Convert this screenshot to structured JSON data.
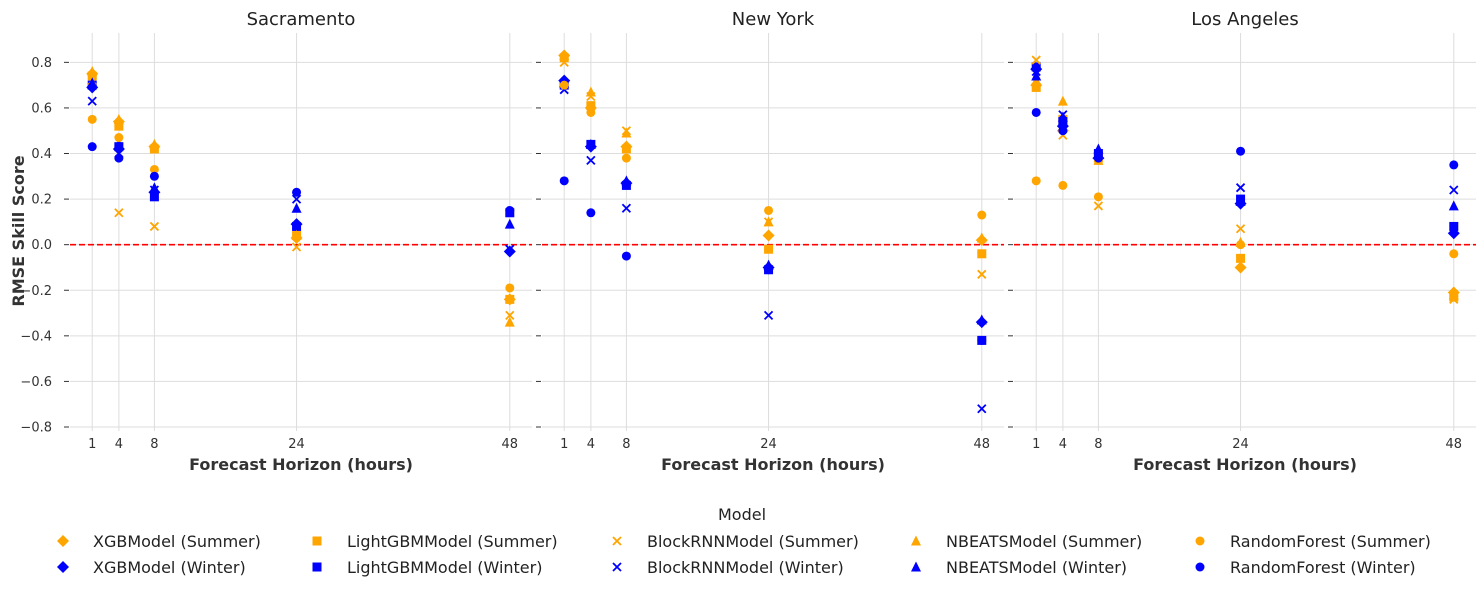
{
  "chart_data": {
    "type": "scatter",
    "ylabel": "RMSE Skill Score",
    "xlabel": "Forecast Horizon (hours)",
    "xticks": [
      1,
      4,
      8,
      24,
      48
    ],
    "xlim": [
      -1.5,
      50.5
    ],
    "ylim": [
      -0.8,
      0.92
    ],
    "yticks": [
      -0.8,
      -0.6,
      -0.4,
      -0.2,
      0.0,
      0.2,
      0.4,
      0.6,
      0.8
    ],
    "ytick_labels": [
      "−0.8",
      "−0.6",
      "−0.4",
      "−0.2",
      "0.0",
      "0.2",
      "0.4",
      "0.6",
      "0.8"
    ],
    "reference_line": {
      "y": 0,
      "color": "#ff0000",
      "style": "dashed"
    },
    "grid": true,
    "legend": {
      "title": "Model",
      "placement": "bottom-center",
      "entries": [
        {
          "label": "XGBModel (Summer)",
          "marker": "diamond",
          "color": "#ffa500"
        },
        {
          "label": "XGBModel (Winter)",
          "marker": "diamond",
          "color": "#0000ff"
        },
        {
          "label": "LightGBMModel (Summer)",
          "marker": "square",
          "color": "#ffa500"
        },
        {
          "label": "LightGBMModel (Winter)",
          "marker": "square",
          "color": "#0000ff"
        },
        {
          "label": "BlockRNNModel (Summer)",
          "marker": "x",
          "color": "#ffa500"
        },
        {
          "label": "BlockRNNModel (Winter)",
          "marker": "x",
          "color": "#0000ff"
        },
        {
          "label": "NBEATSModel (Summer)",
          "marker": "triangle",
          "color": "#ffa500"
        },
        {
          "label": "NBEATSModel (Winter)",
          "marker": "triangle",
          "color": "#0000ff"
        },
        {
          "label": "RandomForest (Summer)",
          "marker": "circle",
          "color": "#ffa500"
        },
        {
          "label": "RandomForest (Winter)",
          "marker": "circle",
          "color": "#0000ff"
        }
      ]
    },
    "panels": [
      {
        "title": "Sacramento",
        "series": [
          {
            "name": "XGBModel (Summer)",
            "x": [
              1,
              4,
              8,
              24,
              48
            ],
            "y": [
              0.75,
              0.54,
              0.43,
              0.03,
              -0.24
            ]
          },
          {
            "name": "XGBModel (Winter)",
            "x": [
              1,
              4,
              8,
              24,
              48
            ],
            "y": [
              0.69,
              0.42,
              0.23,
              0.09,
              -0.03
            ]
          },
          {
            "name": "LightGBMModel (Summer)",
            "x": [
              1,
              4,
              8,
              24,
              48
            ],
            "y": [
              0.74,
              0.52,
              0.42,
              0.04,
              -0.24
            ]
          },
          {
            "name": "LightGBMModel (Winter)",
            "x": [
              1,
              4,
              8,
              24,
              48
            ],
            "y": [
              0.7,
              0.43,
              0.21,
              0.08,
              0.14
            ]
          },
          {
            "name": "BlockRNNModel (Summer)",
            "x": [
              1,
              4,
              8,
              24,
              48
            ],
            "y": [
              0.72,
              0.14,
              0.08,
              -0.01,
              -0.31
            ]
          },
          {
            "name": "BlockRNNModel (Winter)",
            "x": [
              1,
              4,
              8,
              24,
              48
            ],
            "y": [
              0.63,
              0.4,
              0.24,
              0.2,
              -0.02
            ]
          },
          {
            "name": "NBEATSModel (Summer)",
            "x": [
              1,
              4,
              8,
              24,
              48
            ],
            "y": [
              0.76,
              0.55,
              0.44,
              0.04,
              -0.34
            ]
          },
          {
            "name": "NBEATSModel (Winter)",
            "x": [
              1,
              4,
              8,
              24,
              48
            ],
            "y": [
              0.71,
              0.44,
              0.25,
              0.16,
              0.09
            ]
          },
          {
            "name": "RandomForest (Summer)",
            "x": [
              1,
              4,
              8,
              24,
              48
            ],
            "y": [
              0.55,
              0.47,
              0.33,
              0.03,
              -0.19
            ]
          },
          {
            "name": "RandomForest (Winter)",
            "x": [
              1,
              4,
              8,
              24,
              48
            ],
            "y": [
              0.43,
              0.38,
              0.3,
              0.23,
              0.15
            ]
          }
        ]
      },
      {
        "title": "New York",
        "series": [
          {
            "name": "XGBModel (Summer)",
            "x": [
              1,
              4,
              8,
              24,
              48
            ],
            "y": [
              0.83,
              0.6,
              0.43,
              0.04,
              0.02
            ]
          },
          {
            "name": "XGBModel (Winter)",
            "x": [
              1,
              4,
              8,
              24,
              48
            ],
            "y": [
              0.72,
              0.43,
              0.27,
              -0.1,
              -0.34
            ]
          },
          {
            "name": "LightGBMModel (Summer)",
            "x": [
              1,
              4,
              8,
              24,
              48
            ],
            "y": [
              0.82,
              0.61,
              0.42,
              -0.02,
              -0.04
            ]
          },
          {
            "name": "LightGBMModel (Winter)",
            "x": [
              1,
              4,
              8,
              24,
              48
            ],
            "y": [
              0.7,
              0.44,
              0.26,
              -0.11,
              -0.42
            ]
          },
          {
            "name": "BlockRNNModel (Summer)",
            "x": [
              1,
              4,
              8,
              24,
              48
            ],
            "y": [
              0.8,
              0.65,
              0.5,
              0.1,
              -0.13
            ]
          },
          {
            "name": "BlockRNNModel (Winter)",
            "x": [
              1,
              4,
              8,
              24,
              48
            ],
            "y": [
              0.68,
              0.37,
              0.16,
              -0.31,
              -0.72
            ]
          },
          {
            "name": "NBEATSModel (Summer)",
            "x": [
              1,
              4,
              8,
              24,
              48
            ],
            "y": [
              0.83,
              0.67,
              0.49,
              0.1,
              0.03
            ]
          },
          {
            "name": "NBEATSModel (Winter)",
            "x": [
              1,
              4,
              8,
              24,
              48
            ],
            "y": [
              0.71,
              0.44,
              0.28,
              -0.09,
              -0.33
            ]
          },
          {
            "name": "RandomForest (Summer)",
            "x": [
              1,
              4,
              8,
              24,
              48
            ],
            "y": [
              0.7,
              0.58,
              0.38,
              0.15,
              0.13
            ]
          },
          {
            "name": "RandomForest (Winter)",
            "x": [
              1,
              4,
              8,
              24,
              48
            ],
            "y": [
              0.28,
              0.14,
              -0.05,
              -0.11,
              -0.42
            ]
          }
        ]
      },
      {
        "title": "Los Angeles",
        "series": [
          {
            "name": "XGBModel (Summer)",
            "x": [
              1,
              4,
              8,
              24,
              48
            ],
            "y": [
              0.7,
              0.5,
              0.38,
              -0.1,
              -0.21
            ]
          },
          {
            "name": "XGBModel (Winter)",
            "x": [
              1,
              4,
              8,
              24,
              48
            ],
            "y": [
              0.77,
              0.52,
              0.38,
              0.18,
              0.05
            ]
          },
          {
            "name": "LightGBMModel (Summer)",
            "x": [
              1,
              4,
              8,
              24,
              48
            ],
            "y": [
              0.69,
              0.55,
              0.38,
              -0.06,
              -0.23
            ]
          },
          {
            "name": "LightGBMModel (Winter)",
            "x": [
              1,
              4,
              8,
              24,
              48
            ],
            "y": [
              0.78,
              0.54,
              0.4,
              0.2,
              0.08
            ]
          },
          {
            "name": "BlockRNNModel (Summer)",
            "x": [
              1,
              4,
              8,
              24,
              48
            ],
            "y": [
              0.81,
              0.48,
              0.17,
              0.07,
              -0.24
            ]
          },
          {
            "name": "BlockRNNModel (Winter)",
            "x": [
              1,
              4,
              8,
              24,
              48
            ],
            "y": [
              0.76,
              0.57,
              0.39,
              0.25,
              0.24
            ]
          },
          {
            "name": "NBEATSModel (Summer)",
            "x": [
              1,
              4,
              8,
              24,
              48
            ],
            "y": [
              0.72,
              0.63,
              0.37,
              0.01,
              -0.22
            ]
          },
          {
            "name": "NBEATSModel (Winter)",
            "x": [
              1,
              4,
              8,
              24,
              48
            ],
            "y": [
              0.74,
              0.56,
              0.42,
              0.19,
              0.17
            ]
          },
          {
            "name": "RandomForest (Summer)",
            "x": [
              1,
              4,
              8,
              24,
              48
            ],
            "y": [
              0.28,
              0.26,
              0.21,
              0.0,
              -0.04
            ]
          },
          {
            "name": "RandomForest (Winter)",
            "x": [
              1,
              4,
              8,
              24,
              48
            ],
            "y": [
              0.58,
              0.5,
              0.38,
              0.41,
              0.35
            ]
          }
        ]
      }
    ]
  }
}
